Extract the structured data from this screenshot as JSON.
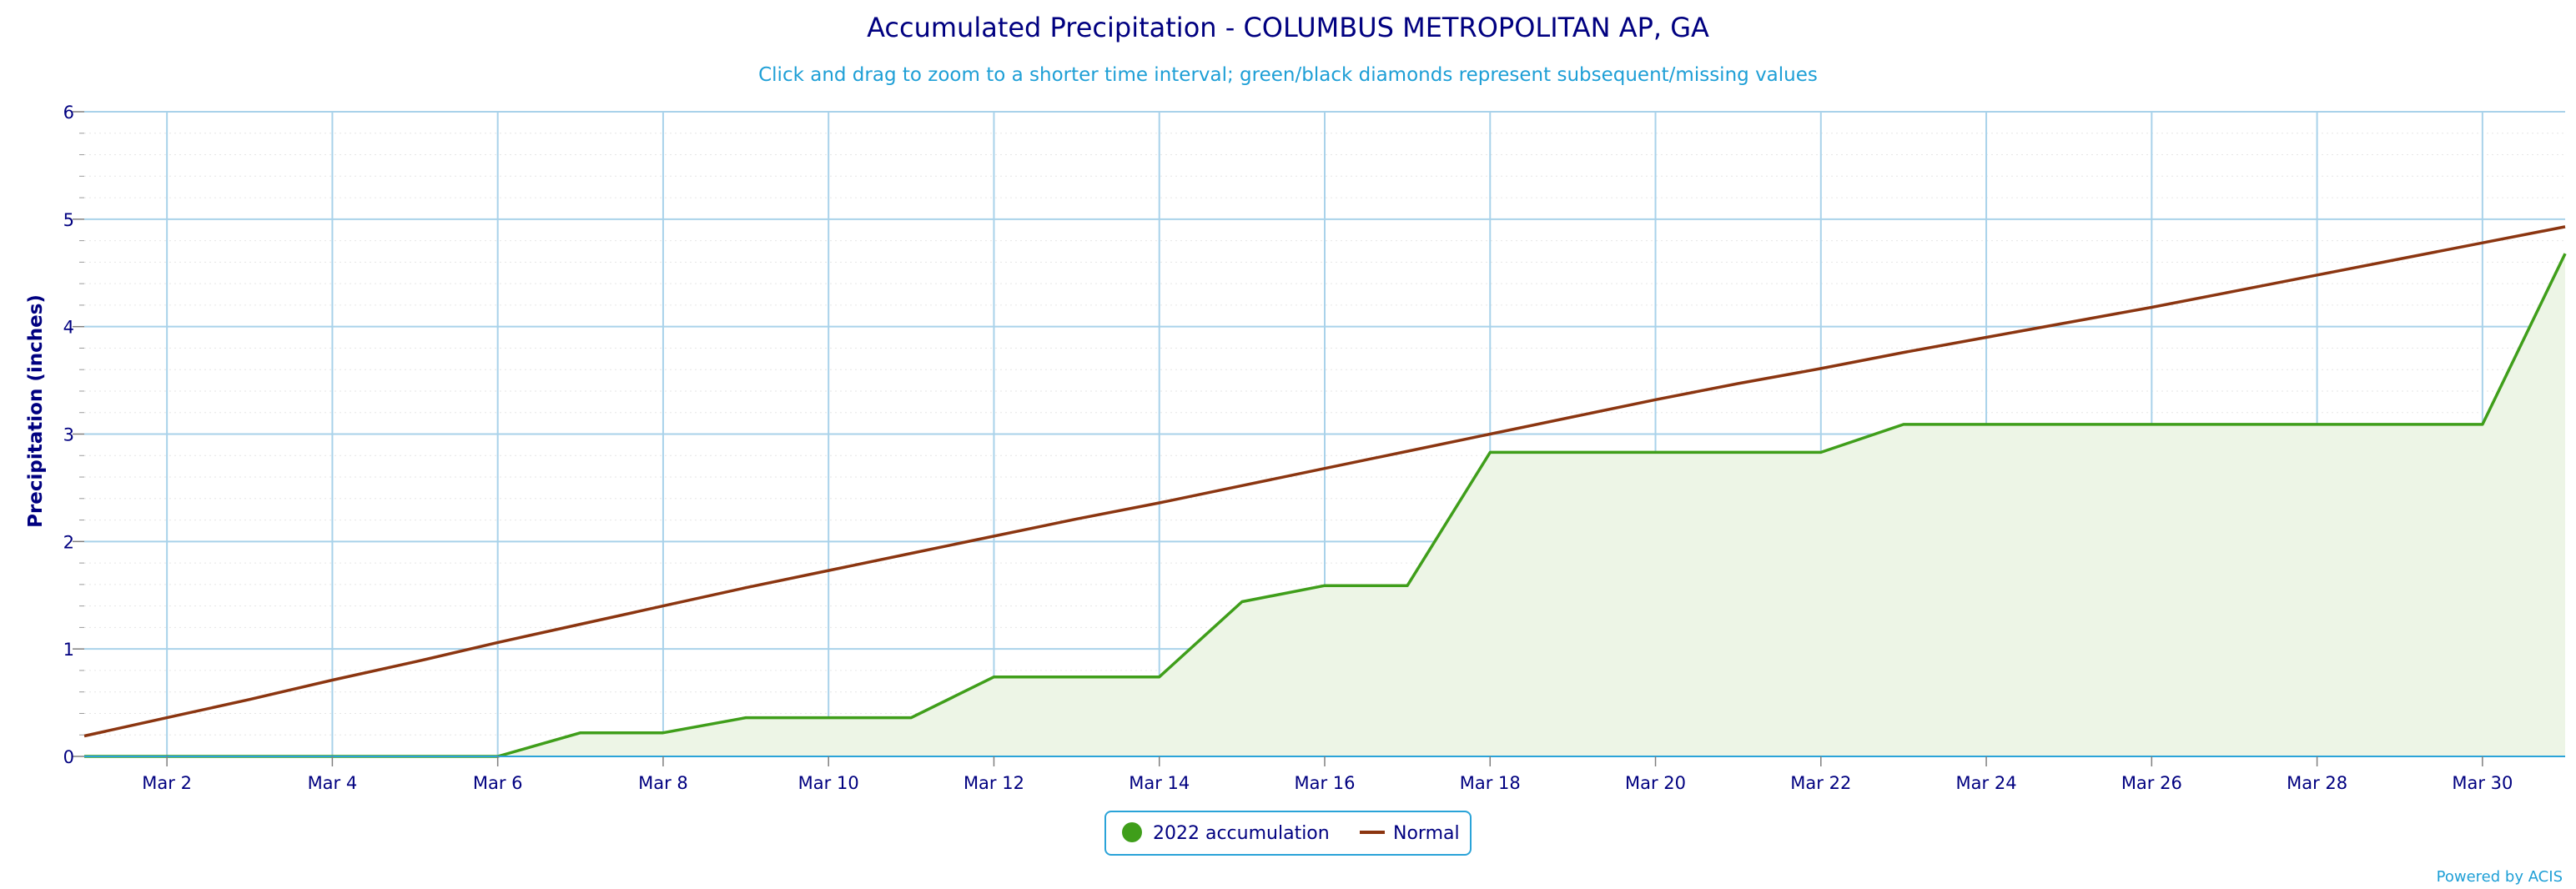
{
  "chart_data": {
    "type": "area",
    "title": "Accumulated Precipitation - COLUMBUS METROPOLITAN AP, GA",
    "subtitle": "Click and drag to zoom to a shorter time interval; green/black diamonds represent subsequent/missing values",
    "ylabel": "Precipitation (inches)",
    "xlabel": "",
    "x": [
      1,
      2,
      3,
      4,
      5,
      6,
      7,
      8,
      9,
      10,
      11,
      12,
      13,
      14,
      15,
      16,
      17,
      18,
      19,
      20,
      21,
      22,
      23,
      24,
      25,
      26,
      27,
      28,
      29,
      30,
      31
    ],
    "xlim": [
      1,
      31
    ],
    "x_ticks": [
      {
        "x": 2,
        "label": "Mar 2"
      },
      {
        "x": 4,
        "label": "Mar 4"
      },
      {
        "x": 6,
        "label": "Mar 6"
      },
      {
        "x": 8,
        "label": "Mar 8"
      },
      {
        "x": 10,
        "label": "Mar 10"
      },
      {
        "x": 12,
        "label": "Mar 12"
      },
      {
        "x": 14,
        "label": "Mar 14"
      },
      {
        "x": 16,
        "label": "Mar 16"
      },
      {
        "x": 18,
        "label": "Mar 18"
      },
      {
        "x": 20,
        "label": "Mar 20"
      },
      {
        "x": 22,
        "label": "Mar 22"
      },
      {
        "x": 24,
        "label": "Mar 24"
      },
      {
        "x": 26,
        "label": "Mar 26"
      },
      {
        "x": 28,
        "label": "Mar 28"
      },
      {
        "x": 30,
        "label": "Mar 30"
      }
    ],
    "ylim": [
      0,
      6
    ],
    "y_ticks": [
      {
        "y": 0,
        "label": "0"
      },
      {
        "y": 1,
        "label": "1"
      },
      {
        "y": 2,
        "label": "2"
      },
      {
        "y": 3,
        "label": "3"
      },
      {
        "y": 4,
        "label": "4"
      },
      {
        "y": 5,
        "label": "5"
      },
      {
        "y": 6,
        "label": "6"
      }
    ],
    "grid": true,
    "legend_position": "bottom-center",
    "series": [
      {
        "name": "2022 accumulation",
        "color": "#3f9e1a",
        "fill_color": "#edf5e6",
        "values": [
          0,
          0,
          0,
          0,
          0,
          0,
          0.22,
          0.22,
          0.36,
          0.36,
          0.36,
          0.74,
          0.74,
          0.74,
          1.44,
          1.59,
          1.59,
          2.83,
          2.83,
          2.83,
          2.83,
          2.83,
          3.09,
          3.09,
          3.09,
          3.09,
          3.09,
          3.09,
          3.09,
          3.09,
          4.68
        ]
      },
      {
        "name": "Normal",
        "color": "#8b3510",
        "values": [
          0.19,
          0.36,
          0.53,
          0.71,
          0.88,
          1.06,
          1.23,
          1.4,
          1.57,
          1.73,
          1.89,
          2.05,
          2.21,
          2.36,
          2.52,
          2.68,
          2.84,
          3.0,
          3.16,
          3.32,
          3.47,
          3.61,
          3.76,
          3.9,
          4.04,
          4.18,
          4.33,
          4.48,
          4.63,
          4.78,
          4.93
        ]
      }
    ]
  },
  "credit": "Powered by ACIS"
}
